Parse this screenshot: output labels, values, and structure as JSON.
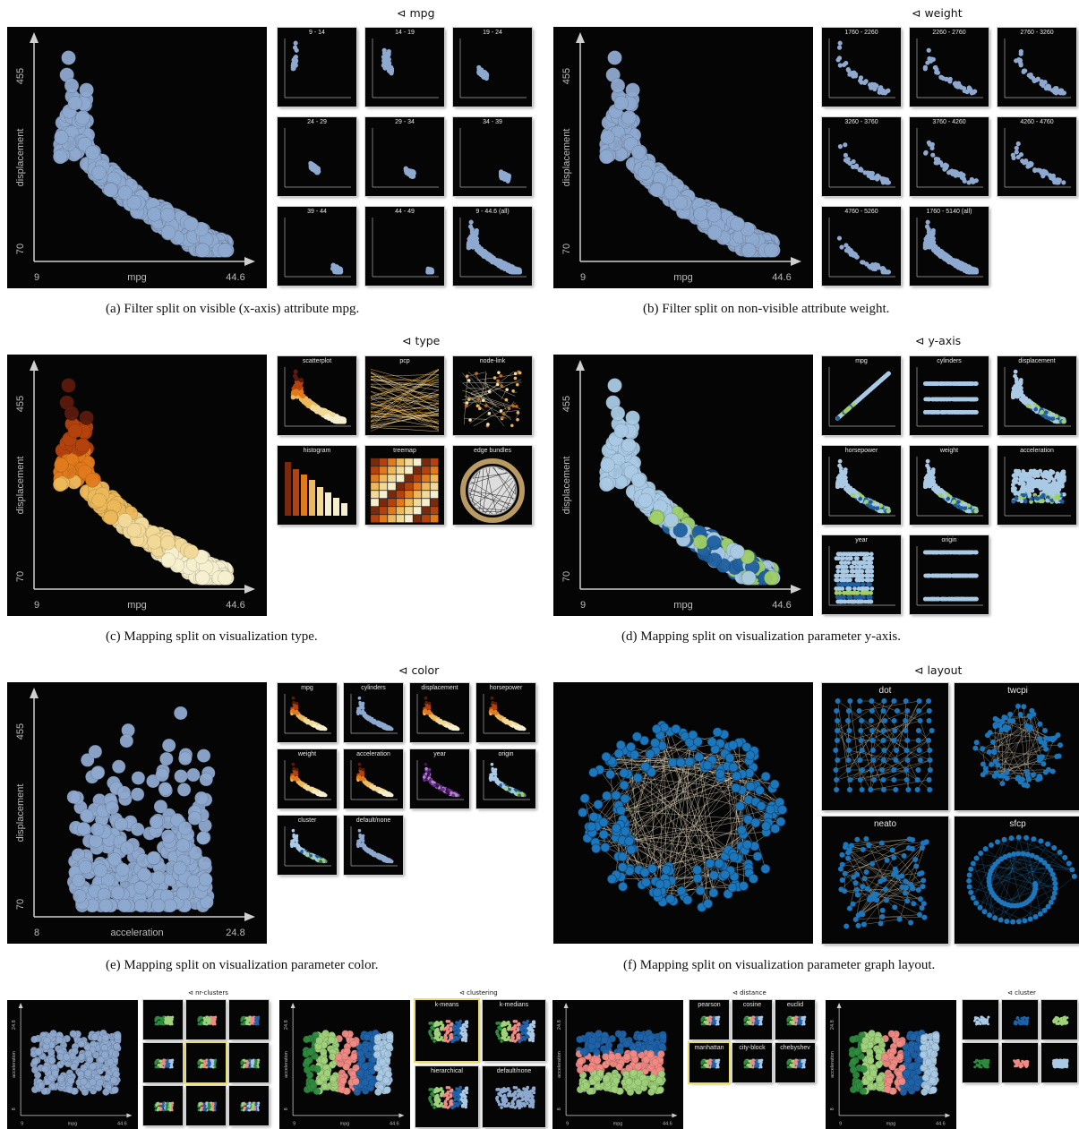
{
  "panels": {
    "a": {
      "split_label": "mpg",
      "caption": "(a)  Filter split on visible (x-axis) attribute mpg.",
      "y_label": "displacement",
      "y_max": "455",
      "y_min": "70",
      "x_label": "mpg",
      "x_min": "9",
      "x_max": "44.6",
      "tiles": [
        "9 - 14",
        "14 - 19",
        "19 - 24",
        "24 - 29",
        "29 - 34",
        "34 - 39",
        "39 - 44",
        "44 - 49",
        "9 - 44.6 (all)"
      ]
    },
    "b": {
      "split_label": "weight",
      "caption": "(b)  Filter split on non-visible attribute weight.",
      "y_label": "displacement",
      "y_max": "455",
      "y_min": "70",
      "x_label": "mpg",
      "x_min": "9",
      "x_max": "44.6",
      "tiles": [
        "1760 - 2260",
        "2260 - 2760",
        "2760 - 3260",
        "3260 - 3760",
        "3760 - 4260",
        "4260 - 4760",
        "4760 - 5260",
        "1760 - 5140 (all)"
      ]
    },
    "c": {
      "split_label": "type",
      "caption": "(c)  Mapping split on visualization type.",
      "y_label": "displacement",
      "y_max": "455",
      "y_min": "70",
      "x_label": "mpg",
      "x_min": "9",
      "x_max": "44.6",
      "tiles": [
        "scatterplot",
        "pcp",
        "node-link",
        "histogram",
        "treemap",
        "edge bundles"
      ]
    },
    "d": {
      "split_label": "y-axis",
      "caption": "(d)  Mapping split on visualization parameter y-axis.",
      "y_label": "displacement",
      "y_max": "455",
      "y_min": "70",
      "x_label": "mpg",
      "x_min": "9",
      "x_max": "44.6",
      "tiles": [
        "mpg",
        "cylinders",
        "displacement",
        "horsepower",
        "weight",
        "acceleration",
        "year",
        "origin"
      ]
    },
    "e": {
      "split_label": "color",
      "caption": "(e)  Mapping split on visualization parameter color.",
      "y_label": "displacement",
      "y_max": "455",
      "y_min": "70",
      "x_label": "acceleration",
      "x_min": "8",
      "x_max": "24.8",
      "tiles": [
        "mpg",
        "cylinders",
        "displacement",
        "horsepower",
        "weight",
        "acceleration",
        "year",
        "origin",
        "cluster",
        "default/none"
      ]
    },
    "f": {
      "split_label": "layout",
      "caption": "(f)  Mapping split on visualization parameter graph layout.",
      "tiles": [
        "dot",
        "twcpi",
        "neato",
        "sfcp"
      ]
    },
    "g": {
      "split1": "nr-clusters",
      "split2": "clustering",
      "tiles2": [
        "k-means",
        "k-medians",
        "hierarchical",
        "default/none"
      ],
      "split3": "distance",
      "tiles3": [
        "pearson",
        "cosine",
        "euclid",
        "manhattan",
        "city-block",
        "chebyshev"
      ],
      "split4": "cluster",
      "y_label": "acceleration",
      "y_max": "24.8",
      "y_min": "8",
      "x_label": "mpg",
      "x_min": "9",
      "x_max": "44.6"
    }
  },
  "colors": {
    "blue": "#8ea9cf",
    "graph_blue": "#1c76bb",
    "highlight": "#e8df63"
  }
}
